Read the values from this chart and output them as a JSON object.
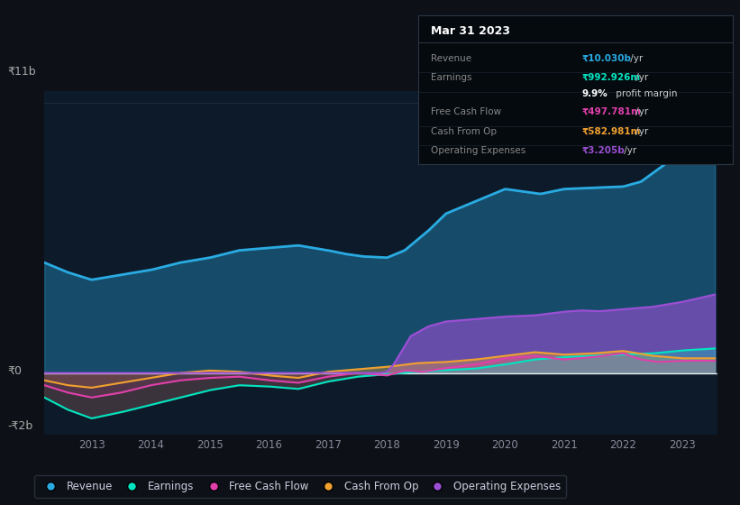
{
  "background_color": "#0d1117",
  "plot_bg_color": "#0d1a2a",
  "y_label_top": "₹11b",
  "y_label_zero": "₹0",
  "y_label_bottom": "-₹2b",
  "x_ticks": [
    2013,
    2014,
    2015,
    2016,
    2017,
    2018,
    2019,
    2020,
    2021,
    2022,
    2023
  ],
  "colors": {
    "revenue": "#29abe2",
    "earnings": "#00e5c0",
    "free_cash_flow": "#e040aa",
    "cash_from_op": "#f0a030",
    "operating_expenses": "#9b4fd4"
  },
  "tooltip": {
    "title": "Mar 31 2023",
    "rows": [
      {
        "label": "Revenue",
        "value": "₹10.030b /yr",
        "value_color": "#29abe2"
      },
      {
        "label": "Earnings",
        "value": "₹992.926m /yr",
        "value_color": "#00e5c0"
      },
      {
        "label": "",
        "value": "9.9% profit margin",
        "value_color": "#ffffff"
      },
      {
        "label": "Free Cash Flow",
        "value": "₹497.781m /yr",
        "value_color": "#e040aa"
      },
      {
        "label": "Cash From Op",
        "value": "₹582.981m /yr",
        "value_color": "#f0a030"
      },
      {
        "label": "Operating Expenses",
        "value": "₹3.205b /yr",
        "value_color": "#9b4fd4"
      }
    ]
  },
  "ylim": [
    -2.5,
    11.5
  ],
  "xlim": [
    2012.2,
    2023.6
  ]
}
